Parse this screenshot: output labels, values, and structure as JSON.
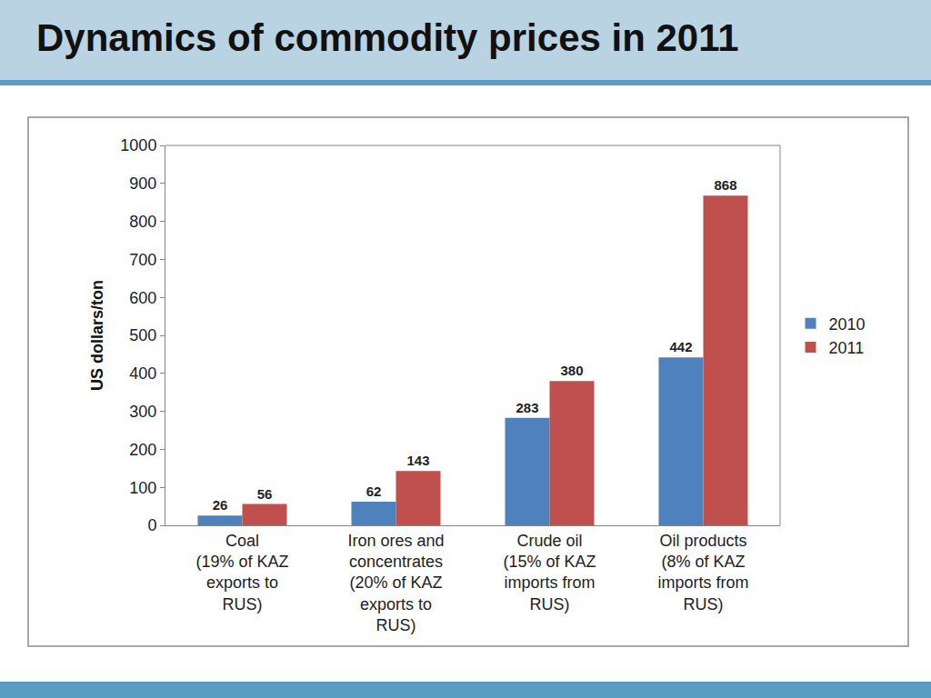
{
  "chart_data": {
    "type": "bar",
    "title": "Dynamics of commodity prices in 2011",
    "y_label": "US dollars/ton",
    "categories": [
      "Coal (19% of KAZ exports to RUS)",
      "Iron ores and concentrates (20% of KAZ exports to RUS)",
      "Crude oil (15% of KAZ imports from RUS)",
      "Oil products (8% of KAZ imports from RUS)"
    ],
    "series": [
      {
        "name": "2010",
        "color": "#4f81bd",
        "values": [
          26,
          62,
          283,
          442
        ]
      },
      {
        "name": "2011",
        "color": "#c0504d",
        "values": [
          56,
          143,
          380,
          868
        ]
      }
    ],
    "ylim": [
      0,
      1000
    ],
    "yticks": [
      0,
      100,
      200,
      300,
      400,
      500,
      600,
      700,
      800,
      900,
      1000
    ],
    "grid": false,
    "legend": "right",
    "data_labels": true
  }
}
